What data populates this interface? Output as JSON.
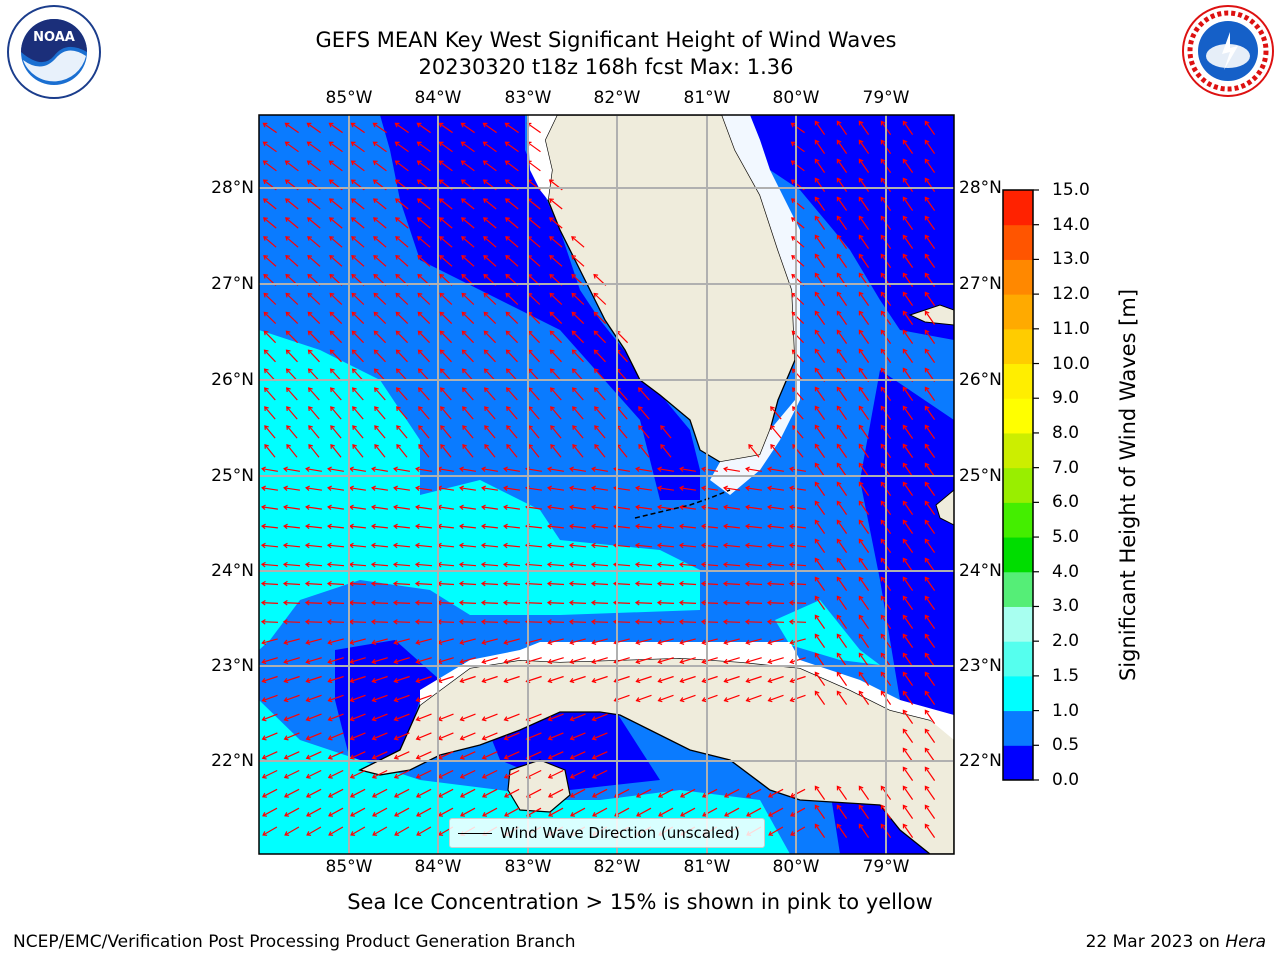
{
  "title": {
    "line1": "GEFS MEAN Key West Significant Height of Wind Waves",
    "line2": "20230320 t18z 168h fcst   Max: 1.36"
  },
  "logos": {
    "left": "NOAA",
    "right": "NATIONAL WEATHER SERVICE"
  },
  "map": {
    "lon_ticks": [
      "85°W",
      "84°W",
      "83°W",
      "82°W",
      "81°W",
      "80°W",
      "79°W"
    ],
    "lat_ticks": [
      "28°N",
      "27°N",
      "26°N",
      "25°N",
      "24°N",
      "23°N",
      "22°N"
    ],
    "colors": {
      "land": "#efecdc",
      "grid": "#b0b0b0",
      "arrow": "#ff0000",
      "ice": "#ffffff"
    }
  },
  "legend": {
    "label": "Wind Wave Direction (unscaled)"
  },
  "colorbar": {
    "label": "Significant Height of Wind Waves [m]",
    "ticks": [
      "0.0",
      "0.5",
      "1.0",
      "1.5",
      "2.0",
      "3.0",
      "4.0",
      "5.0",
      "6.0",
      "7.0",
      "8.0",
      "9.0",
      "10.0",
      "11.0",
      "12.0",
      "13.0",
      "14.0",
      "15.0"
    ],
    "colors": [
      "#0000ff",
      "#0a7bff",
      "#00ffff",
      "#55ffee",
      "#a8fff0",
      "#55ee77",
      "#00dd00",
      "#44ee00",
      "#99ee00",
      "#ccee00",
      "#ffff00",
      "#ffee00",
      "#ffcc00",
      "#ffaa00",
      "#ff8800",
      "#ff5500",
      "#ff2200"
    ]
  },
  "caption": "Sea Ice Concentration > 15% is shown in pink to yellow",
  "footer": {
    "left": "NCEP/EMC/Verification Post Processing Product Generation Branch",
    "right_date": "22 Mar 2023 on ",
    "right_host": "Hera"
  }
}
